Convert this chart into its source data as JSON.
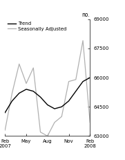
{
  "x_labels": [
    "Feb\n2007",
    "May",
    "Aug",
    "Nov",
    "Feb\n2008"
  ],
  "x_label_months": [
    0,
    3,
    6,
    9,
    12
  ],
  "ylabel": "no.",
  "ylim": [
    63000,
    69000
  ],
  "yticks": [
    63000,
    64500,
    66000,
    67500,
    69000
  ],
  "ytick_labels": [
    "63000",
    "64500",
    "66000",
    "67500",
    "69000"
  ],
  "trend_color": "#000000",
  "seasonal_color": "#b0b0b0",
  "trend_linewidth": 1.0,
  "seasonal_linewidth": 0.9,
  "legend_labels": [
    "Trend",
    "Seasonally Adjusted"
  ],
  "background_color": "#ffffff",
  "trend_x": [
    0,
    1,
    2,
    3,
    4,
    5,
    6,
    7,
    8,
    9,
    10,
    11,
    12
  ],
  "trend_y": [
    64200,
    64800,
    65200,
    65400,
    65300,
    65000,
    64600,
    64400,
    64500,
    64800,
    65300,
    65800,
    66000
  ],
  "seasonal_x": [
    0,
    1,
    2,
    3,
    4,
    5,
    6,
    7,
    8,
    9,
    10,
    11,
    12
  ],
  "seasonal_y": [
    63300,
    65200,
    66700,
    65700,
    66500,
    63200,
    63000,
    63700,
    64000,
    65800,
    65900,
    67900,
    63700
  ]
}
